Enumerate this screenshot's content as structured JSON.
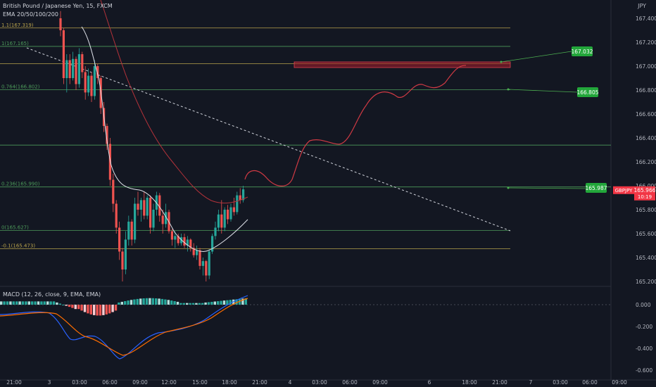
{
  "header": {
    "symbol_line": "British Pound / Japanese Yen, 15, FXCM",
    "ema_line": "EMA 20/50/100/200",
    "currency": "JPY"
  },
  "macd_header": "MACD (12, 26, close, 9, EMA, EMA)",
  "colors": {
    "background": "#131722",
    "bull": "#26a69a",
    "bear": "#ef5350",
    "fib_gold": "#b8a24b",
    "fib_green": "#4c9a5a",
    "ema_white": "#e0e3eb",
    "ema_red": "#b2323a",
    "macd_line": "#2962ff",
    "signal_line": "#ff6d00",
    "target_box": "#a61c2a"
  },
  "fib_levels": [
    {
      "label": "1.1(167.319)",
      "price": 167.319,
      "color": "gold"
    },
    {
      "label": "1(167.165)",
      "price": 167.165,
      "color": "green"
    },
    {
      "label": "",
      "price": 167.02,
      "color": "gold"
    },
    {
      "label": "0.764(166.802)",
      "price": 166.802,
      "color": "green"
    },
    {
      "label": "",
      "price": 166.34,
      "color": "green"
    },
    {
      "label": "0.236(165.990)",
      "price": 165.99,
      "color": "green"
    },
    {
      "label": "0(165.627)",
      "price": 165.627,
      "color": "green"
    },
    {
      "label": "-0.1(165.473)",
      "price": 165.473,
      "color": "gold"
    }
  ],
  "targets": [
    {
      "label": "167.032",
      "price": 167.032
    },
    {
      "label": "166.805",
      "price": 166.805
    },
    {
      "label": "165.987",
      "price": 165.987
    }
  ],
  "current_price": {
    "ticker": "GBPJPY",
    "price": "165.966",
    "countdown": "10:19"
  },
  "chart_data": {
    "type": "candlestick",
    "y_ticks": [
      "167.400",
      "167.200",
      "167.000",
      "166.800",
      "166.600",
      "166.400",
      "166.200",
      "166.000",
      "165.800",
      "165.600",
      "165.400",
      "165.200"
    ],
    "ylim": [
      165.17,
      167.48
    ],
    "x_ticks": [
      "21:00",
      "3",
      "03:00",
      "06:00",
      "09:00",
      "12:00",
      "15:00",
      "18:00",
      "21:00",
      "4",
      "03:00",
      "06:00",
      "09:00",
      "6",
      "18:00",
      "21:00",
      "7",
      "03:00",
      "06:00",
      "09:00"
    ],
    "candles": [
      [
        167.4,
        167.46,
        167.25,
        167.3
      ],
      [
        167.3,
        167.32,
        166.85,
        166.9
      ],
      [
        166.9,
        167.1,
        166.78,
        167.05
      ],
      [
        167.05,
        167.1,
        166.85,
        166.9
      ],
      [
        166.9,
        167.12,
        166.88,
        167.06
      ],
      [
        167.06,
        167.08,
        166.8,
        166.85
      ],
      [
        166.85,
        167.15,
        166.82,
        167.1
      ],
      [
        167.1,
        167.12,
        166.9,
        166.95
      ],
      [
        166.95,
        167.0,
        166.72,
        166.78
      ],
      [
        166.78,
        166.98,
        166.75,
        166.92
      ],
      [
        166.92,
        166.95,
        166.7,
        166.75
      ],
      [
        166.75,
        167.05,
        166.72,
        167.0
      ],
      [
        167.0,
        167.02,
        166.85,
        166.9
      ],
      [
        166.9,
        166.92,
        166.6,
        166.65
      ],
      [
        166.65,
        166.7,
        166.45,
        166.5
      ],
      [
        166.5,
        166.52,
        166.3,
        166.35
      ],
      [
        166.35,
        166.4,
        166.0,
        166.05
      ],
      [
        166.05,
        166.1,
        165.78,
        165.85
      ],
      [
        165.85,
        165.88,
        165.6,
        165.65
      ],
      [
        165.65,
        165.7,
        165.38,
        165.45
      ],
      [
        165.45,
        165.48,
        165.2,
        165.3
      ],
      [
        165.3,
        165.62,
        165.26,
        165.55
      ],
      [
        165.55,
        165.75,
        165.5,
        165.7
      ],
      [
        165.7,
        165.72,
        165.5,
        165.55
      ],
      [
        165.55,
        165.9,
        165.52,
        165.85
      ],
      [
        165.85,
        165.95,
        165.75,
        165.8
      ],
      [
        165.8,
        165.9,
        165.7,
        165.88
      ],
      [
        165.88,
        165.95,
        165.72,
        165.75
      ],
      [
        165.75,
        165.92,
        165.72,
        165.9
      ],
      [
        165.9,
        165.92,
        165.6,
        165.65
      ],
      [
        165.65,
        165.85,
        165.62,
        165.8
      ],
      [
        165.8,
        165.95,
        165.75,
        165.92
      ],
      [
        165.92,
        165.94,
        165.7,
        165.75
      ],
      [
        165.75,
        165.8,
        165.6,
        165.68
      ],
      [
        165.68,
        165.85,
        165.65,
        165.78
      ],
      [
        165.78,
        165.8,
        165.6,
        165.62
      ],
      [
        165.62,
        165.64,
        165.5,
        165.55
      ],
      [
        165.55,
        165.62,
        165.48,
        165.58
      ],
      [
        165.58,
        165.6,
        165.5,
        165.52
      ],
      [
        165.52,
        165.6,
        165.5,
        165.57
      ],
      [
        165.57,
        165.6,
        165.48,
        165.5
      ],
      [
        165.5,
        165.58,
        165.45,
        165.55
      ],
      [
        165.55,
        165.56,
        165.45,
        165.48
      ],
      [
        165.48,
        165.52,
        165.4,
        165.42
      ],
      [
        165.42,
        165.5,
        165.38,
        165.46
      ],
      [
        165.46,
        165.48,
        165.3,
        165.33
      ],
      [
        165.33,
        165.4,
        165.25,
        165.37
      ],
      [
        165.37,
        165.38,
        165.2,
        165.25
      ],
      [
        165.25,
        165.47,
        165.22,
        165.45
      ],
      [
        165.45,
        165.6,
        165.43,
        165.58
      ],
      [
        165.58,
        165.7,
        165.55,
        165.65
      ],
      [
        165.65,
        165.8,
        165.62,
        165.76
      ],
      [
        165.76,
        165.88,
        165.6,
        165.65
      ],
      [
        165.65,
        165.82,
        165.62,
        165.8
      ],
      [
        165.8,
        165.84,
        165.68,
        165.72
      ],
      [
        165.72,
        165.85,
        165.7,
        165.82
      ],
      [
        165.82,
        165.9,
        165.75,
        165.78
      ],
      [
        165.78,
        165.95,
        165.76,
        165.92
      ],
      [
        165.92,
        165.98,
        165.85,
        165.88
      ],
      [
        165.88,
        166.0,
        165.86,
        165.97
      ]
    ],
    "projection": [
      [
        167.07,
        167.08,
        166.98,
        166.99
      ]
    ],
    "macd_ticks": [
      "0.000",
      "-0.200",
      "-0.400",
      "-0.600"
    ],
    "macd_ylim": [
      -0.63,
      0.06
    ]
  }
}
